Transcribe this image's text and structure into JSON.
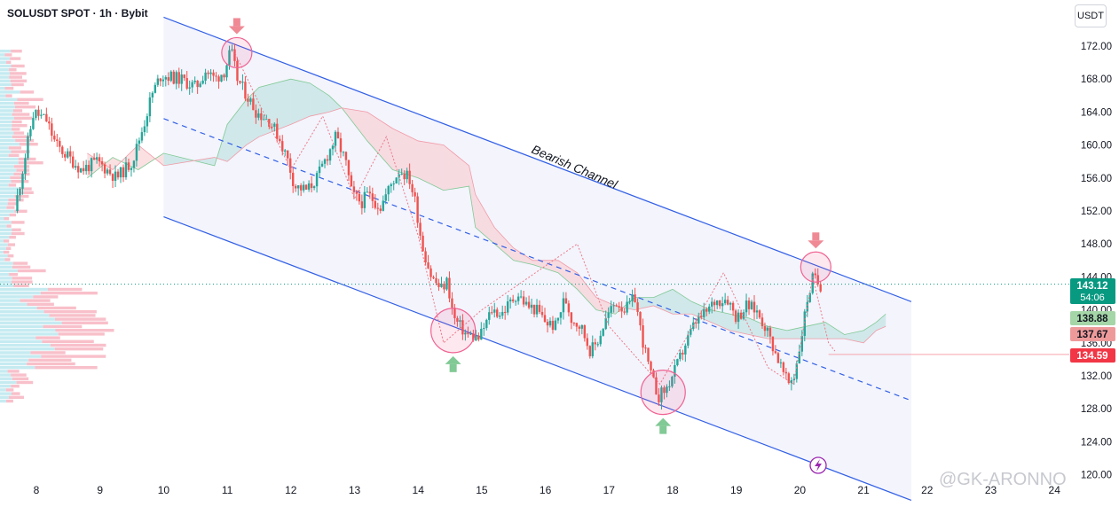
{
  "header": {
    "title": "SOLUSDT SPOT · 1h · Bybit",
    "currency": "USDT"
  },
  "watermark": "@GK-ARONNO",
  "annotation": {
    "channel_label": "Bearish Channel"
  },
  "colors": {
    "up": "#26a69a",
    "down": "#ef5350",
    "channel": "#3360e6",
    "cloud_up": "#b2dfdb",
    "cloud_down": "#f8c7ca",
    "projection": "#ec7a88"
  },
  "icons": [
    "arrow-down-icon",
    "arrow-up-icon",
    "lightning-icon"
  ],
  "price_tags": [
    {
      "value": "143.12",
      "sub": "54:06",
      "color": "#089981"
    },
    {
      "value": "138.88",
      "color": "#a5d6a7",
      "text_color": "#131722"
    },
    {
      "value": "137.67",
      "color": "#ef9a9a",
      "text_color": "#131722"
    },
    {
      "value": "134.59",
      "color": "#f23645"
    }
  ],
  "chart_data": {
    "type": "candlestick",
    "x_ticks": [
      "8",
      "9",
      "10",
      "11",
      "12",
      "13",
      "14",
      "15",
      "16",
      "17",
      "18",
      "19",
      "20",
      "21",
      "22",
      "23",
      "24"
    ],
    "y_ticks": [
      "120.00",
      "124.00",
      "128.00",
      "132.00",
      "136.00",
      "140.00",
      "144.00",
      "148.00",
      "152.00",
      "156.00",
      "160.00",
      "164.00",
      "168.00",
      "172.00"
    ],
    "ylim": [
      118.7,
      174.5
    ],
    "last_price": 143.12,
    "price_path": [
      [
        7.7,
        152
      ],
      [
        7.85,
        158
      ],
      [
        8.0,
        164
      ],
      [
        8.2,
        163
      ],
      [
        8.35,
        160
      ],
      [
        8.55,
        158.5
      ],
      [
        8.75,
        157
      ],
      [
        9.0,
        158
      ],
      [
        9.15,
        157
      ],
      [
        9.3,
        156
      ],
      [
        9.55,
        158
      ],
      [
        9.75,
        163
      ],
      [
        9.85,
        166
      ],
      [
        10.0,
        168.5
      ],
      [
        10.3,
        168
      ],
      [
        10.55,
        167
      ],
      [
        10.7,
        169
      ],
      [
        10.85,
        168
      ],
      [
        11.0,
        169
      ],
      [
        11.1,
        171.5
      ],
      [
        11.2,
        168
      ],
      [
        11.35,
        166
      ],
      [
        11.5,
        164
      ],
      [
        11.7,
        163
      ],
      [
        11.85,
        161
      ],
      [
        12.0,
        158
      ],
      [
        12.1,
        155
      ],
      [
        12.3,
        154.5
      ],
      [
        12.45,
        156
      ],
      [
        12.6,
        158.5
      ],
      [
        12.75,
        161
      ],
      [
        12.9,
        158
      ],
      [
        13.0,
        154
      ],
      [
        13.15,
        153
      ],
      [
        13.25,
        154
      ],
      [
        13.45,
        152.5
      ],
      [
        13.6,
        155
      ],
      [
        13.75,
        157
      ],
      [
        13.9,
        156
      ],
      [
        14.0,
        153
      ],
      [
        14.1,
        148
      ],
      [
        14.25,
        144
      ],
      [
        14.4,
        142.5
      ],
      [
        14.5,
        143.5
      ],
      [
        14.6,
        139
      ],
      [
        14.7,
        138
      ],
      [
        14.8,
        137
      ],
      [
        15.0,
        136.5
      ],
      [
        15.2,
        140
      ],
      [
        15.35,
        139.5
      ],
      [
        15.5,
        141
      ],
      [
        15.6,
        142
      ],
      [
        15.75,
        140.5
      ],
      [
        15.9,
        140
      ],
      [
        16.05,
        138.5
      ],
      [
        16.2,
        138
      ],
      [
        16.35,
        141.5
      ],
      [
        16.45,
        139
      ],
      [
        16.6,
        138
      ],
      [
        16.75,
        135
      ],
      [
        16.85,
        136
      ],
      [
        17.0,
        139
      ],
      [
        17.15,
        141
      ],
      [
        17.3,
        140
      ],
      [
        17.45,
        141.5
      ],
      [
        17.55,
        137
      ],
      [
        17.7,
        132
      ],
      [
        17.82,
        129.5
      ],
      [
        17.95,
        130.5
      ],
      [
        18.1,
        133
      ],
      [
        18.25,
        136
      ],
      [
        18.4,
        138.5
      ],
      [
        18.55,
        139.5
      ],
      [
        18.7,
        141
      ],
      [
        18.9,
        141.5
      ],
      [
        19.05,
        139
      ],
      [
        19.2,
        140.5
      ],
      [
        19.35,
        140
      ],
      [
        19.5,
        138
      ],
      [
        19.65,
        135
      ],
      [
        19.75,
        133
      ],
      [
        19.85,
        131
      ],
      [
        19.95,
        132
      ],
      [
        20.05,
        136
      ],
      [
        20.15,
        141
      ],
      [
        20.25,
        144
      ],
      [
        20.35,
        143
      ]
    ],
    "channel": {
      "upper": [
        [
          10.0,
          175.5
        ],
        [
          21.75,
          141.0
        ]
      ],
      "middle": [
        [
          10.0,
          163.2
        ],
        [
          21.75,
          129.0
        ]
      ],
      "lower": [
        [
          10.0,
          151.3
        ],
        [
          21.75,
          116.9
        ]
      ]
    },
    "projection_path": [
      [
        11.1,
        171.5
      ],
      [
        12.0,
        157
      ],
      [
        12.5,
        163.5
      ],
      [
        13.0,
        153.5
      ],
      [
        13.5,
        161
      ],
      [
        14.0,
        149
      ],
      [
        14.4,
        136
      ],
      [
        15.0,
        140
      ],
      [
        16.5,
        148
      ],
      [
        17.0,
        138
      ],
      [
        17.8,
        131
      ],
      [
        18.8,
        144.5
      ],
      [
        19.5,
        133
      ],
      [
        19.9,
        131
      ],
      [
        20.2,
        144
      ],
      [
        20.45,
        136
      ],
      [
        20.55,
        135
      ]
    ],
    "support_line": {
      "from_day": 20.45,
      "value": 134.59
    },
    "resistance_line": {
      "value": 143.12
    },
    "ichimoku_cloud": [
      [
        8.8,
        156.0,
        159.0
      ],
      [
        9.2,
        158.5,
        157.0
      ],
      [
        9.6,
        157.0,
        160.0
      ],
      [
        10.0,
        159.0,
        157.5
      ],
      [
        10.8,
        157.5,
        158.5
      ],
      [
        11.0,
        162.5,
        158.0
      ],
      [
        11.3,
        165.5,
        160.0
      ],
      [
        11.5,
        167.0,
        161.0
      ],
      [
        12.0,
        168.0,
        162.5
      ],
      [
        12.3,
        167.5,
        163.5
      ],
      [
        12.6,
        166.0,
        164.0
      ],
      [
        12.8,
        164.5,
        164.5
      ],
      [
        13.2,
        160.5,
        164.0
      ],
      [
        13.6,
        157.0,
        162.0
      ],
      [
        14.0,
        156.0,
        160.5
      ],
      [
        14.4,
        154.5,
        160.0
      ],
      [
        14.8,
        155.0,
        157.5
      ],
      [
        14.9,
        150.0,
        154.0
      ],
      [
        15.2,
        148.0,
        150.0
      ],
      [
        15.5,
        146.0,
        147.5
      ],
      [
        15.8,
        145.5,
        146.0
      ],
      [
        16.2,
        144.5,
        146.0
      ],
      [
        16.5,
        142.5,
        144.5
      ],
      [
        16.8,
        140.0,
        141.5
      ],
      [
        17.1,
        139.5,
        140.5
      ],
      [
        17.4,
        141.5,
        140.0
      ],
      [
        17.7,
        141.5,
        140.5
      ],
      [
        18.0,
        142.5,
        139.5
      ],
      [
        18.3,
        141.0,
        139.5
      ],
      [
        18.6,
        140.0,
        138.5
      ],
      [
        18.9,
        139.5,
        137.5
      ],
      [
        19.2,
        139.0,
        137.0
      ],
      [
        19.5,
        138.0,
        136.5
      ],
      [
        19.8,
        137.5,
        136.5
      ],
      [
        20.1,
        138.0,
        136.5
      ],
      [
        20.4,
        138.5,
        136.5
      ],
      [
        20.7,
        137.0,
        136.5
      ],
      [
        21.0,
        137.5,
        136.0
      ],
      [
        21.2,
        138.5,
        137.5
      ],
      [
        21.35,
        139.5,
        138.0
      ]
    ],
    "highlights": [
      {
        "day": 11.15,
        "price": 171.2,
        "type": "top"
      },
      {
        "day": 14.55,
        "price": 137.5,
        "type": "bottom"
      },
      {
        "day": 17.85,
        "price": 130.0,
        "type": "bottom"
      },
      {
        "day": 20.25,
        "price": 145.2,
        "type": "top"
      }
    ]
  }
}
